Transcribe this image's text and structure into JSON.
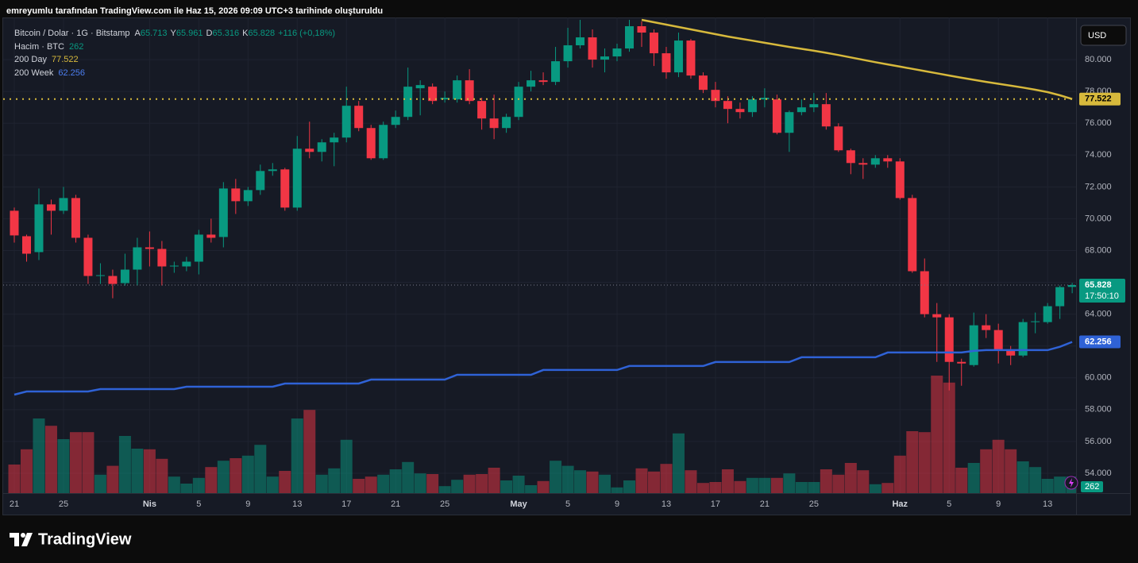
{
  "header": "emreyumlu tarafından TradingView.com ile Haz 15, 2026 09:09 UTC+3 tarihinde oluşturuldu",
  "brand": "TradingView",
  "chart_data": {
    "type": "candlestick",
    "title": "Bitcoin / Dolar · 1G · Bitstamp",
    "readout": [
      {
        "key": "A",
        "label": "65.713"
      },
      {
        "key": "Y",
        "label": "65.961"
      },
      {
        "key": "D",
        "label": "65.316"
      },
      {
        "key": "K",
        "label": "65.828"
      }
    ],
    "change_label": "+116 (+0,18%)",
    "currency": "USD",
    "close_label": "65.828",
    "countdown": "17:50:10",
    "up_color": "#089981",
    "down_color": "#f23645",
    "x": [
      "2026-03-21",
      "2026-03-22",
      "2026-03-23",
      "2026-03-24",
      "2026-03-25",
      "2026-03-26",
      "2026-03-27",
      "2026-03-28",
      "2026-03-29",
      "2026-03-30",
      "2026-03-31",
      "2026-04-01",
      "2026-04-02",
      "2026-04-03",
      "2026-04-04",
      "2026-04-05",
      "2026-04-06",
      "2026-04-07",
      "2026-04-08",
      "2026-04-09",
      "2026-04-10",
      "2026-04-11",
      "2026-04-12",
      "2026-04-13",
      "2026-04-14",
      "2026-04-15",
      "2026-04-16",
      "2026-04-17",
      "2026-04-18",
      "2026-04-19",
      "2026-04-20",
      "2026-04-21",
      "2026-04-22",
      "2026-04-23",
      "2026-04-24",
      "2026-04-25",
      "2026-04-26",
      "2026-04-27",
      "2026-04-28",
      "2026-04-29",
      "2026-04-30",
      "2026-05-01",
      "2026-05-02",
      "2026-05-03",
      "2026-05-04",
      "2026-05-05",
      "2026-05-06",
      "2026-05-07",
      "2026-05-08",
      "2026-05-09",
      "2026-05-10",
      "2026-05-11",
      "2026-05-12",
      "2026-05-13",
      "2026-05-14",
      "2026-05-15",
      "2026-05-16",
      "2026-05-17",
      "2026-05-18",
      "2026-05-19",
      "2026-05-20",
      "2026-05-21",
      "2026-05-22",
      "2026-05-23",
      "2026-05-24",
      "2026-05-25",
      "2026-05-26",
      "2026-05-27",
      "2026-05-28",
      "2026-05-29",
      "2026-05-30",
      "2026-05-31",
      "2026-06-01",
      "2026-06-02",
      "2026-06-03",
      "2026-06-04",
      "2026-06-05",
      "2026-06-06",
      "2026-06-07",
      "2026-06-08",
      "2026-06-09",
      "2026-06-10",
      "2026-06-11",
      "2026-06-12",
      "2026-06-13",
      "2026-06-14",
      "2026-06-15"
    ],
    "open": [
      70500,
      68900,
      67900,
      70900,
      70500,
      71300,
      68800,
      66400,
      66400,
      65950,
      66800,
      68200,
      68100,
      67000,
      67000,
      67300,
      69000,
      68850,
      71900,
      71100,
      71800,
      73000,
      73100,
      70700,
      74400,
      74200,
      74800,
      75100,
      77100,
      75700,
      73800,
      75900,
      76400,
      78200,
      78300,
      77500,
      77500,
      78700,
      77400,
      76300,
      75700,
      76400,
      78300,
      78700,
      78600,
      79900,
      80900,
      81400,
      80000,
      80200,
      80700,
      82100,
      81700,
      80400,
      79200,
      81200,
      79000,
      78100,
      77400,
      76900,
      76700,
      77500,
      77500,
      75400,
      76700,
      77000,
      77200,
      75800,
      74300,
      73500,
      73400,
      73800,
      73600,
      71300,
      66700,
      64000,
      63800,
      61000,
      60800,
      63300,
      63000,
      61700,
      61400,
      63500,
      63500,
      64500,
      65713
    ],
    "high": [
      70700,
      69000,
      71900,
      71200,
      72000,
      71500,
      69000,
      67200,
      66800,
      67800,
      68800,
      69200,
      68600,
      67300,
      67600,
      69300,
      70000,
      72300,
      72500,
      72000,
      73400,
      73500,
      73200,
      75200,
      76100,
      75000,
      75400,
      78300,
      77400,
      75900,
      76100,
      76800,
      79500,
      78700,
      78500,
      78000,
      79000,
      79400,
      77600,
      77800,
      76600,
      78600,
      79300,
      79200,
      80800,
      82000,
      82500,
      81900,
      80700,
      81000,
      82500,
      82400,
      81900,
      80800,
      81700,
      81300,
      79200,
      78600,
      77700,
      77300,
      77700,
      78200,
      77800,
      76800,
      77500,
      77900,
      77900,
      76000,
      74400,
      73800,
      74000,
      74000,
      73800,
      71500,
      67500,
      64700,
      64000,
      61200,
      64100,
      64000,
      63400,
      62000,
      63700,
      64100,
      64700,
      65800,
      65961
    ],
    "low": [
      68500,
      67300,
      67400,
      69000,
      70300,
      68500,
      65900,
      65900,
      65000,
      65800,
      65800,
      67000,
      65800,
      66600,
      66700,
      66500,
      68500,
      68200,
      70300,
      70800,
      71500,
      72700,
      70500,
      70500,
      73800,
      73600,
      73300,
      74800,
      75500,
      73700,
      73700,
      75700,
      76200,
      76500,
      77200,
      77300,
      77300,
      77200,
      75600,
      75000,
      75400,
      76200,
      78000,
      78400,
      78400,
      79500,
      80700,
      79500,
      79200,
      79900,
      80500,
      80800,
      79600,
      78800,
      78900,
      78800,
      77900,
      77000,
      76000,
      76300,
      76400,
      77000,
      75300,
      74200,
      76500,
      76700,
      75600,
      74200,
      72800,
      72500,
      73200,
      73200,
      71200,
      66600,
      63800,
      61000,
      59200,
      59500,
      60700,
      62500,
      60900,
      60800,
      61300,
      62800,
      63400,
      63700,
      65316
    ],
    "close": [
      68950,
      67800,
      70900,
      70500,
      71300,
      68800,
      66400,
      66450,
      65900,
      66800,
      68200,
      68100,
      67000,
      67050,
      67300,
      69000,
      68800,
      71900,
      71100,
      71800,
      73000,
      73100,
      70700,
      74400,
      74200,
      74800,
      75100,
      77100,
      75700,
      73800,
      75900,
      76400,
      78300,
      78400,
      77400,
      77600,
      78700,
      77400,
      76300,
      75700,
      76400,
      78300,
      78700,
      78600,
      79900,
      80900,
      81400,
      80000,
      80200,
      80700,
      82100,
      81700,
      80400,
      79200,
      81200,
      79000,
      78100,
      77400,
      76900,
      76700,
      77500,
      77600,
      75400,
      76700,
      77000,
      77200,
      75800,
      74300,
      73500,
      73400,
      73800,
      73600,
      71300,
      66700,
      64000,
      63800,
      61000,
      60900,
      63300,
      63000,
      61700,
      61400,
      63500,
      63550,
      64500,
      65700,
      65828
    ],
    "volume_name": "Hacim · BTC",
    "volume": [
      450,
      690,
      1175,
      1060,
      850,
      960,
      960,
      290,
      430,
      900,
      700,
      690,
      540,
      260,
      150,
      240,
      410,
      510,
      550,
      590,
      760,
      260,
      350,
      1175,
      1310,
      290,
      390,
      840,
      225,
      260,
      290,
      375,
      490,
      310,
      300,
      110,
      210,
      290,
      300,
      400,
      200,
      275,
      125,
      190,
      510,
      430,
      360,
      340,
      290,
      90,
      200,
      390,
      340,
      460,
      940,
      360,
      160,
      175,
      375,
      190,
      240,
      240,
      240,
      310,
      175,
      175,
      375,
      290,
      475,
      360,
      140,
      160,
      590,
      975,
      960,
      1850,
      1740,
      400,
      475,
      690,
      840,
      690,
      500,
      410,
      225,
      260,
      262
    ],
    "series": [
      {
        "name": "200 Day",
        "color": "#d7b93c",
        "last_label": "77.522",
        "values": [
          null,
          null,
          null,
          null,
          null,
          null,
          null,
          null,
          null,
          null,
          null,
          null,
          null,
          null,
          null,
          null,
          null,
          null,
          null,
          null,
          null,
          null,
          null,
          null,
          null,
          null,
          null,
          null,
          null,
          null,
          null,
          null,
          null,
          null,
          null,
          null,
          null,
          null,
          null,
          null,
          null,
          null,
          null,
          null,
          null,
          null,
          null,
          null,
          null,
          null,
          null,
          82500,
          82350,
          82200,
          82050,
          81900,
          81750,
          81600,
          81450,
          81320,
          81190,
          81060,
          80930,
          80800,
          80680,
          80560,
          80430,
          80290,
          80140,
          79990,
          79840,
          79700,
          79560,
          79420,
          79280,
          79140,
          79000,
          78860,
          78730,
          78600,
          78480,
          78360,
          78240,
          78110,
          77960,
          77760,
          77522
        ]
      },
      {
        "name": "200 Week",
        "color": "#2f62d6",
        "last_label": "62.256",
        "values": [
          58940,
          59140,
          59140,
          59140,
          59140,
          59140,
          59140,
          59290,
          59290,
          59290,
          59290,
          59290,
          59290,
          59290,
          59440,
          59440,
          59440,
          59440,
          59440,
          59440,
          59440,
          59440,
          59640,
          59640,
          59640,
          59640,
          59640,
          59640,
          59640,
          59890,
          59890,
          59890,
          59890,
          59890,
          59890,
          59890,
          60190,
          60190,
          60190,
          60190,
          60190,
          60190,
          60190,
          60490,
          60490,
          60490,
          60490,
          60490,
          60490,
          60490,
          60740,
          60740,
          60740,
          60740,
          60740,
          60740,
          60740,
          60990,
          60990,
          60990,
          60990,
          60990,
          60990,
          60990,
          61290,
          61290,
          61290,
          61290,
          61290,
          61290,
          61290,
          61590,
          61590,
          61590,
          61590,
          61590,
          61590,
          61590,
          61690,
          61740,
          61740,
          61740,
          61740,
          61740,
          61740,
          61950,
          62256
        ]
      }
    ],
    "ylim": [
      52750,
      82650
    ],
    "yticks": [
      {
        "value": 54000,
        "label": "54.000"
      },
      {
        "value": 56000,
        "label": "56.000"
      },
      {
        "value": 58000,
        "label": "58.000"
      },
      {
        "value": 60000,
        "label": "60.000"
      },
      {
        "value": 62000,
        "label": "62.000"
      },
      {
        "value": 64000,
        "label": "64.000"
      },
      {
        "value": 66000,
        "label": "66.000"
      },
      {
        "value": 68000,
        "label": "68.000"
      },
      {
        "value": 70000,
        "label": "70.000"
      },
      {
        "value": 72000,
        "label": "72.000"
      },
      {
        "value": 74000,
        "label": "74.000"
      },
      {
        "value": 76000,
        "label": "76.000"
      },
      {
        "value": 78000,
        "label": "78.000"
      },
      {
        "value": 80000,
        "label": "80.000"
      }
    ],
    "xticks": [
      {
        "value": "2026-03-21",
        "label": "21"
      },
      {
        "value": "2026-03-25",
        "label": "25"
      },
      {
        "value": "2026-04-01",
        "label": "Nis"
      },
      {
        "value": "2026-04-05",
        "label": "5"
      },
      {
        "value": "2026-04-09",
        "label": "9"
      },
      {
        "value": "2026-04-13",
        "label": "13"
      },
      {
        "value": "2026-04-17",
        "label": "17"
      },
      {
        "value": "2026-04-21",
        "label": "21"
      },
      {
        "value": "2026-04-25",
        "label": "25"
      },
      {
        "value": "2026-05-01",
        "label": "May"
      },
      {
        "value": "2026-05-05",
        "label": "5"
      },
      {
        "value": "2026-05-09",
        "label": "9"
      },
      {
        "value": "2026-05-13",
        "label": "13"
      },
      {
        "value": "2026-05-17",
        "label": "17"
      },
      {
        "value": "2026-05-21",
        "label": "21"
      },
      {
        "value": "2026-05-25",
        "label": "25"
      },
      {
        "value": "2026-06-01",
        "label": "Haz"
      },
      {
        "value": "2026-06-05",
        "label": "5"
      },
      {
        "value": "2026-06-09",
        "label": "9"
      },
      {
        "value": "2026-06-13",
        "label": "13"
      }
    ],
    "grid": true
  }
}
